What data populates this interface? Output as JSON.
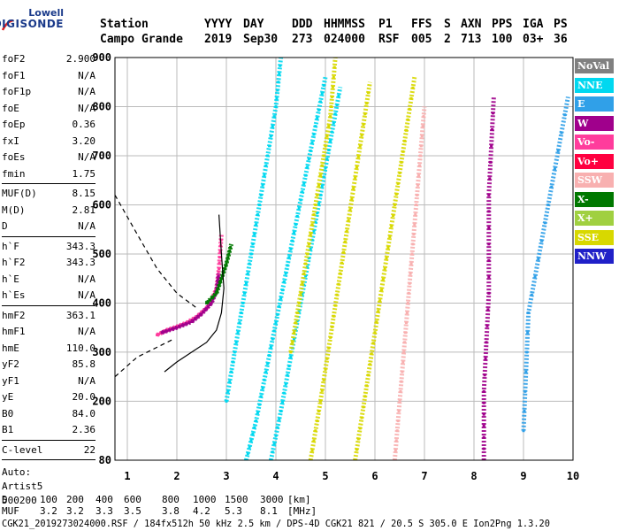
{
  "logo": {
    "top": "Lowell",
    "bottom": "DIGISONDE"
  },
  "header": {
    "labels": [
      "Station",
      "YYYY",
      "DAY",
      "DDD",
      "HHMMSS",
      "P1",
      "FFS",
      "S",
      "AXN",
      "PPS",
      "IGA",
      "PS"
    ],
    "values": [
      "Campo Grande",
      "2019",
      "Sep30",
      "273",
      "024000",
      "RSF",
      "005",
      "2",
      "713",
      "100",
      "03+",
      "36"
    ]
  },
  "params_group1": [
    {
      "name": "foF2",
      "value": "2.900"
    },
    {
      "name": "foF1",
      "value": "N/A"
    },
    {
      "name": "foF1p",
      "value": "N/A"
    },
    {
      "name": "foE",
      "value": "N/A"
    },
    {
      "name": "foEp",
      "value": "0.36"
    },
    {
      "name": "fxI",
      "value": "3.20"
    },
    {
      "name": "foEs",
      "value": "N/A"
    },
    {
      "name": "fmin",
      "value": "1.75"
    }
  ],
  "params_group2": [
    {
      "name": "MUF(D)",
      "value": "8.15"
    },
    {
      "name": "M(D)",
      "value": "2.81"
    },
    {
      "name": "D",
      "value": "N/A"
    }
  ],
  "params_group3": [
    {
      "name": "h`F",
      "value": "343.3"
    },
    {
      "name": "h`F2",
      "value": "343.3"
    },
    {
      "name": "h`E",
      "value": "N/A"
    },
    {
      "name": "h`Es",
      "value": "N/A"
    }
  ],
  "params_group4": [
    {
      "name": "hmF2",
      "value": "363.1"
    },
    {
      "name": "hmF1",
      "value": "N/A"
    },
    {
      "name": "hmE",
      "value": "110.0"
    },
    {
      "name": "yF2",
      "value": "85.8"
    },
    {
      "name": "yF1",
      "value": "N/A"
    },
    {
      "name": "yE",
      "value": "20.0"
    },
    {
      "name": "B0",
      "value": "84.0"
    },
    {
      "name": "B1",
      "value": "2.36"
    }
  ],
  "params_group5": [
    {
      "name": "C-level",
      "value": "22"
    }
  ],
  "auto": [
    "Auto:",
    "Artist5",
    "500200"
  ],
  "legend": [
    {
      "label": "NoVal",
      "bg": "#808080",
      "fg": "#ffffff"
    },
    {
      "label": "NNE",
      "bg": "#00d8f0",
      "fg": "#ffffff"
    },
    {
      "label": "E",
      "bg": "#30a0e8",
      "fg": "#ffffff"
    },
    {
      "label": "W",
      "bg": "#a0008c",
      "fg": "#ffffff"
    },
    {
      "label": "Vo-",
      "bg": "#ff3c9c",
      "fg": "#ffffff"
    },
    {
      "label": "Vo+",
      "bg": "#ff0040",
      "fg": "#ffffff"
    },
    {
      "label": "SSW",
      "bg": "#f8b0b0",
      "fg": "#ffffff"
    },
    {
      "label": "X-",
      "bg": "#007800",
      "fg": "#ffffff"
    },
    {
      "label": "X+",
      "bg": "#a0d040",
      "fg": "#ffffff"
    },
    {
      "label": "SSE",
      "bg": "#d8d800",
      "fg": "#ffffff"
    },
    {
      "label": "NNW",
      "bg": "#2020c8",
      "fg": "#ffffff"
    }
  ],
  "footer": {
    "d_label": "D",
    "d_values": [
      "100",
      "200",
      "400",
      "600",
      "800",
      "1000",
      "1500",
      "3000",
      "[km]"
    ],
    "muf_label": "MUF",
    "muf_values": [
      "3.2",
      "3.2",
      "3.3",
      "3.5",
      "3.8",
      "4.2",
      "5.3",
      "8.1",
      "[MHz]"
    ],
    "info": "CGK21_2019273024000.RSF / 184fx512h 50 kHz 2.5 km / DPS-4D CGK21 821 / 20.5 S 305.0 E Ion2Png 1.3.20"
  },
  "chart_data": {
    "type": "scatter",
    "title": "",
    "xlabel": "",
    "ylabel": "",
    "xlim": [
      0.75,
      10
    ],
    "ylim": [
      80,
      900
    ],
    "x_ticks": [
      1,
      2,
      3,
      4,
      5,
      6,
      7,
      8,
      9,
      10
    ],
    "y_ticks": [
      80,
      200,
      300,
      400,
      500,
      600,
      700,
      800,
      900
    ],
    "traces": [
      {
        "color": "#ff3c9c",
        "points": [
          [
            1.6,
            335
          ],
          [
            1.8,
            345
          ],
          [
            2.0,
            352
          ],
          [
            2.2,
            360
          ],
          [
            2.4,
            372
          ],
          [
            2.6,
            390
          ],
          [
            2.7,
            405
          ],
          [
            2.8,
            430
          ],
          [
            2.85,
            470
          ],
          [
            2.9,
            540
          ]
        ]
      },
      {
        "color": "#a0008c",
        "points": [
          [
            1.7,
            340
          ],
          [
            2.0,
            350
          ],
          [
            2.3,
            362
          ],
          [
            2.5,
            378
          ],
          [
            2.7,
            400
          ],
          [
            2.8,
            425
          ],
          [
            2.85,
            460
          ]
        ]
      },
      {
        "color": "#007800",
        "points": [
          [
            2.6,
            400
          ],
          [
            2.8,
            420
          ],
          [
            2.9,
            450
          ],
          [
            3.0,
            480
          ],
          [
            3.1,
            520
          ]
        ]
      },
      {
        "color": "#00d8f0",
        "points": [
          [
            3.4,
            80
          ],
          [
            3.6,
            160
          ],
          [
            3.8,
            260
          ],
          [
            4.0,
            360
          ],
          [
            4.2,
            460
          ],
          [
            4.4,
            560
          ],
          [
            4.6,
            660
          ],
          [
            4.8,
            760
          ],
          [
            5.0,
            860
          ]
        ]
      },
      {
        "color": "#00d8f0",
        "points": [
          [
            3.9,
            80
          ],
          [
            4.1,
            180
          ],
          [
            4.3,
            290
          ],
          [
            4.5,
            400
          ],
          [
            4.7,
            510
          ],
          [
            4.9,
            620
          ],
          [
            5.1,
            730
          ],
          [
            5.3,
            840
          ]
        ]
      },
      {
        "color": "#00d8f0",
        "points": [
          [
            3.0,
            200
          ],
          [
            3.2,
            320
          ],
          [
            3.4,
            440
          ],
          [
            3.6,
            560
          ],
          [
            3.8,
            680
          ],
          [
            4.0,
            800
          ],
          [
            4.1,
            900
          ]
        ]
      },
      {
        "color": "#d8d800",
        "points": [
          [
            4.7,
            80
          ],
          [
            4.9,
            200
          ],
          [
            5.1,
            330
          ],
          [
            5.3,
            460
          ],
          [
            5.5,
            590
          ],
          [
            5.7,
            720
          ],
          [
            5.9,
            850
          ]
        ]
      },
      {
        "color": "#d8d800",
        "points": [
          [
            5.6,
            80
          ],
          [
            5.8,
            210
          ],
          [
            6.0,
            340
          ],
          [
            6.2,
            470
          ],
          [
            6.4,
            600
          ],
          [
            6.6,
            730
          ],
          [
            6.8,
            860
          ]
        ]
      },
      {
        "color": "#d8d800",
        "points": [
          [
            4.3,
            300
          ],
          [
            4.5,
            420
          ],
          [
            4.7,
            540
          ],
          [
            4.9,
            660
          ],
          [
            5.1,
            780
          ],
          [
            5.2,
            900
          ]
        ]
      },
      {
        "color": "#f8b0b0",
        "points": [
          [
            6.4,
            80
          ],
          [
            6.5,
            200
          ],
          [
            6.6,
            320
          ],
          [
            6.7,
            440
          ],
          [
            6.8,
            560
          ],
          [
            6.9,
            680
          ],
          [
            7.0,
            800
          ]
        ]
      },
      {
        "color": "#a0008c",
        "points": [
          [
            8.2,
            80
          ],
          [
            8.2,
            220
          ],
          [
            8.3,
            420
          ],
          [
            8.3,
            620
          ],
          [
            8.4,
            820
          ]
        ]
      },
      {
        "color": "#30a0e8",
        "points": [
          [
            9.0,
            140
          ],
          [
            9.1,
            380
          ],
          [
            9.5,
            600
          ],
          [
            9.9,
            820
          ]
        ]
      }
    ],
    "virtual_height_profile": {
      "color": "#000000",
      "points": [
        [
          1.75,
          260
        ],
        [
          2.0,
          280
        ],
        [
          2.3,
          300
        ],
        [
          2.6,
          320
        ],
        [
          2.8,
          345
        ],
        [
          2.9,
          380
        ],
        [
          2.95,
          430
        ],
        [
          2.9,
          500
        ],
        [
          2.85,
          580
        ]
      ]
    },
    "dashed_extrapolation": [
      {
        "color": "#000000",
        "points": [
          [
            0.75,
            620
          ],
          [
            1.2,
            540
          ],
          [
            1.6,
            470
          ],
          [
            2.0,
            420
          ],
          [
            2.4,
            390
          ]
        ]
      },
      {
        "color": "#000000",
        "points": [
          [
            0.75,
            250
          ],
          [
            1.2,
            290
          ],
          [
            1.6,
            310
          ],
          [
            1.9,
            325
          ]
        ]
      }
    ]
  }
}
